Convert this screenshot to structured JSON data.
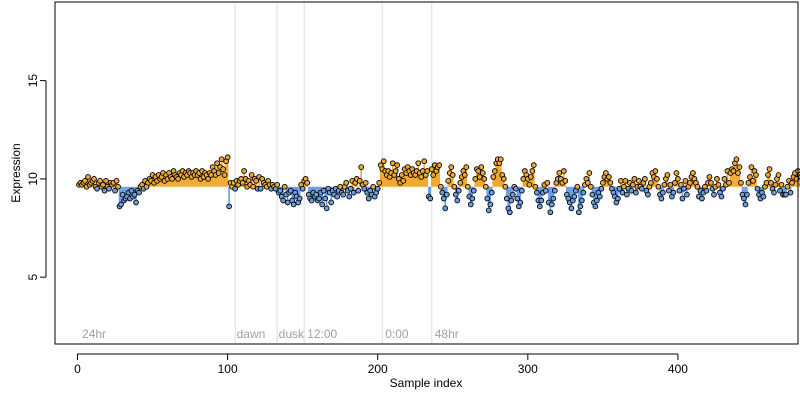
{
  "chart_data": {
    "type": "scatter",
    "title": "",
    "xlabel": "Sample index",
    "ylabel": "Expression",
    "xlim": [
      -15,
      480
    ],
    "ylim": [
      1.6,
      19
    ],
    "x_ticks": [
      0,
      100,
      200,
      300,
      400
    ],
    "y_ticks": [
      5,
      10,
      15
    ],
    "grid": false,
    "baseline": 9.6,
    "colors": {
      "above": "#f0a830",
      "below": "#6c9ee6",
      "point_stroke": "#000000",
      "annotation_line": "#dddddd",
      "annotation_text": "#a0a0a0"
    },
    "annotations": [
      {
        "x": null,
        "label": "24hr",
        "label_x": 3
      },
      {
        "x": 105,
        "label": "dawn",
        "label_x": 106
      },
      {
        "x": 133,
        "label": "dusk",
        "label_x": 134
      },
      {
        "x": 151,
        "label": "12:00",
        "label_x": 153
      },
      {
        "x": 203,
        "label": "0:00",
        "label_x": 205
      },
      {
        "x": 236,
        "label": "48hr",
        "label_x": 238
      }
    ],
    "y_values": [
      9.7,
      9.8,
      9.7,
      9.8,
      9.9,
      9.6,
      10.1,
      9.7,
      9.8,
      9.9,
      10.0,
      9.6,
      9.5,
      9.8,
      9.9,
      9.6,
      9.7,
      9.4,
      9.9,
      9.6,
      9.5,
      9.8,
      9.7,
      9.8,
      9.4,
      9.9,
      9.6,
      8.6,
      8.7,
      9.2,
      8.9,
      9.0,
      9.1,
      9.3,
      9.0,
      9.4,
      9.1,
      9.2,
      8.8,
      9.4,
      9.3,
      9.6,
      9.7,
      9.5,
      9.9,
      9.6,
      9.8,
      10.0,
      9.9,
      10.2,
      9.8,
      10.1,
      9.9,
      10.2,
      10.0,
      10.1,
      10.3,
      9.9,
      10.2,
      10.0,
      10.3,
      10.1,
      10.0,
      10.4,
      10.2,
      10.1,
      10.0,
      10.3,
      10.2,
      10.4,
      10.1,
      10.3,
      10.2,
      10.4,
      10.3,
      10.1,
      10.3,
      10.2,
      10.4,
      10.2,
      10.3,
      10.0,
      10.4,
      10.1,
      10.3,
      10.2,
      10.0,
      10.3,
      10.2,
      10.6,
      10.4,
      10.2,
      10.8,
      10.3,
      10.6,
      11.0,
      10.5,
      10.2,
      10.9,
      11.1,
      8.6,
      9.8,
      9.6,
      9.8,
      9.5,
      9.9,
      9.7,
      9.9,
      10.0,
      9.8,
      10.4,
      10.0,
      9.6,
      9.9,
      9.7,
      10.2,
      9.6,
      10.0,
      9.9,
      9.5,
      10.1,
      9.5,
      10.0,
      9.8,
      9.7,
      9.6,
      9.9,
      9.7,
      9.5,
      9.7,
      9.6,
      9.5,
      9.7,
      9.3,
      9.4,
      9.1,
      8.9,
      9.6,
      9.2,
      8.8,
      9.3,
      9.4,
      8.9,
      8.7,
      9.3,
      9.1,
      8.8,
      9.0,
      9.7,
      9.5,
      9.9,
      10.0,
      9.8,
      9.2,
      9.0,
      8.9,
      9.3,
      9.1,
      9.2,
      8.9,
      9.0,
      9.3,
      8.7,
      9.4,
      9.0,
      8.5,
      9.5,
      9.3,
      8.8,
      9.4,
      9.2,
      9.5,
      9.1,
      9.4,
      9.6,
      9.3,
      9.2,
      9.6,
      9.8,
      9.4,
      9.1,
      9.5,
      9.9,
      9.3,
      9.8,
      10.0,
      9.4,
      9.9,
      10.6,
      9.7,
      9.5,
      9.8,
      9.3,
      9.0,
      9.4,
      9.2,
      9.6,
      9.1,
      9.3,
      9.5,
      9.8,
      10.7,
      10.5,
      10.9,
      10.4,
      10.2,
      10.4,
      10.1,
      10.3,
      10.8,
      10.2,
      10.4,
      10.7,
      10.0,
      9.8,
      10.2,
      9.9,
      10.5,
      10.3,
      10.6,
      10.4,
      10.2,
      10.5,
      10.3,
      10.2,
      10.4,
      10.8,
      10.3,
      10.1,
      10.4,
      10.9,
      10.2,
      10.4,
      9.1,
      9.0,
      10.5,
      10.2,
      10.7,
      10.4,
      10.6,
      10.7,
      9.6,
      9.3,
      9.0,
      8.5,
      9.2,
      9.9,
      10.3,
      10.6,
      10.2,
      9.6,
      9.2,
      8.9,
      9.4,
      9.8,
      10.1,
      10.4,
      10.2,
      10.6,
      9.6,
      9.1,
      8.7,
      9.0,
      9.4,
      10.0,
      10.5,
      10.4,
      10.1,
      10.6,
      10.3,
      10.0,
      9.6,
      9.0,
      8.4,
      8.7,
      9.3,
      10.1,
      10.4,
      10.8,
      11.0,
      10.8,
      11.0,
      10.2,
      10.0,
      9.6,
      9.0,
      8.5,
      8.3,
      8.9,
      9.2,
      9.6,
      9.5,
      9.0,
      8.6,
      8.8,
      9.4,
      10.0,
      10.4,
      10.2,
      10.0,
      9.7,
      10.1,
      10.4,
      10.7,
      9.6,
      9.3,
      8.9,
      8.6,
      8.9,
      9.3,
      9.7,
      9.4,
      9.8,
      8.8,
      8.3,
      8.7,
      9.0,
      9.4,
      9.8,
      10.0,
      10.3,
      10.0,
      9.8,
      10.4,
      9.9,
      9.2,
      9.0,
      8.8,
      8.5,
      8.9,
      9.1,
      9.4,
      9.6,
      8.3,
      8.6,
      8.9,
      9.3,
      9.7,
      10.0,
      9.8,
      10.3,
      9.6,
      9.2,
      8.8,
      8.6,
      8.9,
      9.3,
      9.1,
      9.5,
      9.8,
      10.1,
      10.3,
      10.0,
      10.1,
      9.8,
      9.5,
      9.3,
      9.1,
      8.8,
      9.0,
      9.5,
      9.9,
      9.3,
      9.6,
      9.9,
      9.2,
      9.5,
      9.8,
      9.4,
      9.7,
      10.0,
      9.3,
      9.6,
      9.9,
      9.6,
      9.5,
      9.8,
      10.0,
      9.4,
      9.2,
      9.6,
      9.8,
      10.3,
      10.1,
      10.4,
      10.0,
      9.6,
      9.2,
      9.0,
      9.3,
      9.7,
      10.0,
      10.2,
      9.4,
      9.7,
      9.1,
      9.3,
      9.8,
      10.3,
      10.0,
      9.4,
      9.7,
      9.0,
      9.5,
      9.9,
      9.2,
      9.6,
      9.8,
      10.1,
      10.3,
      10.0,
      9.8,
      9.6,
      9.1,
      9.4,
      9.0,
      9.3,
      9.6,
      9.4,
      9.8,
      10.1,
      9.8,
      9.5,
      9.2,
      9.6,
      10.0,
      9.7,
      9.3,
      9.1,
      9.5,
      10.0,
      9.7,
      10.4,
      9.8,
      10.3,
      10.5,
      10.4,
      10.8,
      11.0,
      10.3,
      10.6,
      9.8,
      9.2,
      9.0,
      8.7,
      9.2,
      9.8,
      10.1,
      10.6,
      9.9,
      10.4,
      10.2,
      9.5,
      9.2,
      9.0,
      9.3,
      9.1,
      9.6,
      9.8,
      10.2,
      10.5,
      9.8,
      9.5,
      9.3,
      9.7,
      10.0,
      10.2,
      9.4,
      9.7,
      9.2,
      9.2,
      9.2,
      9.6,
      9.9,
      9.3,
      9.8,
      10.1,
      10.3,
      10.0,
      10.4,
      10.2,
      10.1,
      9.7,
      9.4,
      9.1
    ]
  }
}
